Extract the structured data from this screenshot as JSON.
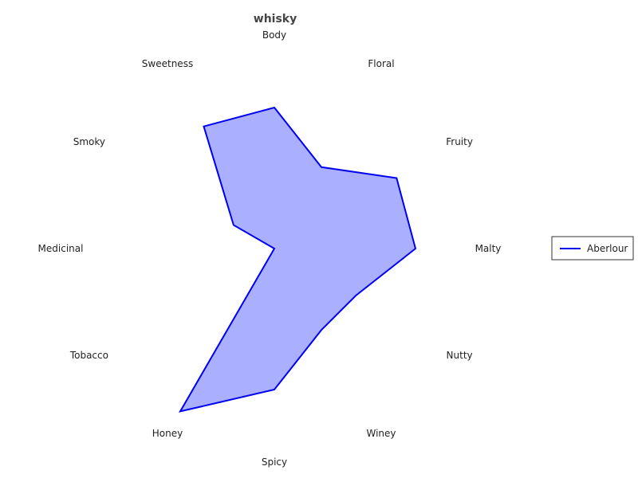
{
  "chart_data": {
    "type": "radar",
    "title": "whisky",
    "axes": [
      "Body",
      "Floral",
      "Fruity",
      "Malty",
      "Nutty",
      "Winey",
      "Spicy",
      "Honey",
      "Tobacco",
      "Medicinal",
      "Smoky",
      "Sweetness"
    ],
    "rmax": 4,
    "series": [
      {
        "name": "Aberlour",
        "values": [
          3,
          2,
          3,
          3,
          2,
          2,
          3,
          4,
          0,
          0,
          1,
          3
        ],
        "color": "#0000ee",
        "fill": "#aab0ff"
      }
    ],
    "legend_position": "right"
  }
}
